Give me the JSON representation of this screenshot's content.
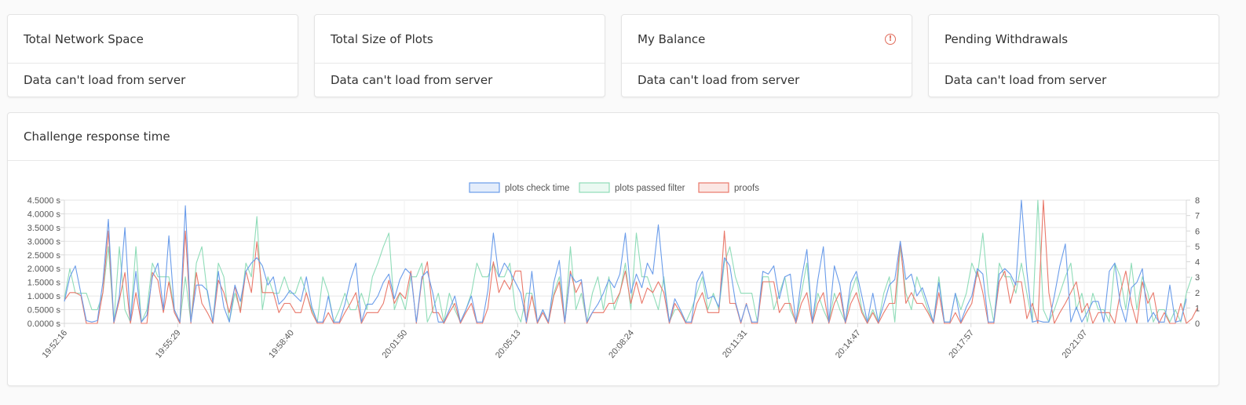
{
  "stat_cards": [
    {
      "title": "Total Network Space",
      "body": "Data can't load from server"
    },
    {
      "title": "Total Size of Plots",
      "body": "Data can't load from server"
    },
    {
      "title": "My Balance",
      "body": "Data can't load from server",
      "icon": "alert-circle-icon"
    },
    {
      "title": "Pending Withdrawals",
      "body": "Data can't load from server"
    }
  ],
  "chart_card": {
    "title": "Challenge response time"
  },
  "colors": {
    "check": "#6a9cea",
    "filter": "#8fdcb8",
    "proofs": "#e9786a"
  },
  "chart_data": {
    "type": "line",
    "legend": [
      "plots check time",
      "plots passed filter",
      "proofs"
    ],
    "legend_placement": "top",
    "x_tick_labels": [
      "19:52:16",
      "19:55:29",
      "19:58:40",
      "20:01:50",
      "20:05:13",
      "20:08:24",
      "20:11:31",
      "20:14:47",
      "20:17:57",
      "20:21:07"
    ],
    "y_left": {
      "min": 0,
      "max": 4.5,
      "step": 0.5,
      "tick_labels": [
        "0.0000 s",
        "0.5000 s",
        "1.0000 s",
        "1.5000 s",
        "2.0000 s",
        "2.5000 s",
        "3.0000 s",
        "3.5000 s",
        "4.0000 s",
        "4.5000 s"
      ]
    },
    "y_right": {
      "min": 0,
      "max": 8,
      "step": 1,
      "tick_labels": [
        "0",
        "1",
        "2",
        "3",
        "4",
        "5",
        "6",
        "7",
        "8"
      ]
    },
    "grid": true,
    "series": [
      {
        "name": "plots check time",
        "axis": "left",
        "values": [
          0.8,
          1.7,
          2.1,
          1.1,
          0.1,
          0.05,
          0.1,
          1.5,
          3.8,
          0.05,
          1.0,
          3.5,
          0.1,
          1.9,
          0.05,
          0.3,
          1.7,
          2.2,
          0.5,
          3.2,
          0.5,
          0.05,
          4.3,
          0.05,
          1.4,
          1.4,
          1.2,
          0.05,
          1.9,
          0.6,
          0.05,
          1.4,
          0.8,
          1.9,
          2.2,
          2.4,
          2.1,
          1.4,
          1.7,
          0.7,
          0.9,
          1.2,
          1.0,
          0.8,
          1.7,
          0.6,
          0.05,
          0.05,
          1.0,
          0.05,
          0.05,
          0.7,
          1.6,
          2.2,
          0.05,
          0.7,
          0.7,
          1.0,
          1.5,
          1.8,
          0.9,
          1.6,
          2.0,
          1.8,
          0.05,
          1.7,
          1.9,
          1.1,
          0.05,
          0.05,
          0.5,
          1.0,
          0.05,
          0.5,
          1.0,
          0.05,
          0.05,
          1.2,
          3.3,
          1.7,
          2.2,
          1.9,
          1.5,
          1.1,
          0.05,
          1.9,
          0.05,
          0.5,
          0.05,
          1.5,
          2.3,
          0.05,
          1.8,
          1.5,
          1.6,
          0.05,
          0.4,
          0.7,
          1.1,
          1.6,
          1.3,
          1.8,
          3.3,
          1.1,
          1.8,
          1.3,
          2.2,
          1.8,
          3.6,
          1.5,
          0.05,
          0.9,
          0.5,
          0.05,
          0.05,
          1.5,
          1.9,
          0.9,
          1.0,
          0.6,
          2.4,
          2.1,
          0.8,
          0.05,
          0.7,
          0.05,
          0.05,
          1.9,
          1.8,
          2.1,
          0.9,
          1.7,
          1.8,
          0.05,
          1.6,
          2.7,
          0.05,
          1.6,
          2.8,
          0.05,
          2.1,
          1.4,
          0.05,
          1.5,
          1.9,
          1.0,
          0.05,
          1.1,
          0.05,
          0.7,
          1.4,
          1.6,
          3.0,
          1.6,
          1.8,
          1.0,
          1.3,
          0.7,
          0.05,
          1.5,
          0.05,
          0.05,
          1.1,
          0.05,
          0.6,
          1.0,
          2.0,
          1.8,
          0.05,
          0.05,
          1.8,
          2.0,
          1.8,
          1.4,
          4.5,
          1.9,
          0.05,
          0.1,
          0.05,
          0.05,
          1.0,
          2.1,
          2.9,
          0.05,
          0.6,
          0.05,
          0.4,
          0.8,
          0.8,
          0.05,
          1.9,
          2.2,
          0.7,
          0.05,
          1.3,
          1.5,
          2.0,
          0.05,
          0.4,
          0.05,
          0.05,
          1.4,
          0.05,
          0.1,
          0.9
        ]
      },
      {
        "name": "plots passed filter",
        "axis": "left",
        "values": [
          0.9,
          2.0,
          1.1,
          1.1,
          1.1,
          0.5,
          0.5,
          1.1,
          2.8,
          0.05,
          2.8,
          0.5,
          0.05,
          2.8,
          0.05,
          0.5,
          2.2,
          1.7,
          1.7,
          1.7,
          0.5,
          0.05,
          1.7,
          0.05,
          2.2,
          2.8,
          1.1,
          0.05,
          2.2,
          1.7,
          0.05,
          1.1,
          0.5,
          2.2,
          1.7,
          3.9,
          0.5,
          1.7,
          1.1,
          1.1,
          1.7,
          1.1,
          1.1,
          1.7,
          1.1,
          0.5,
          0.05,
          1.7,
          1.1,
          0.05,
          0.5,
          1.1,
          0.5,
          0.5,
          1.1,
          0.5,
          1.7,
          2.2,
          2.8,
          3.3,
          0.5,
          1.1,
          0.5,
          1.7,
          1.7,
          2.2,
          0.05,
          0.5,
          1.1,
          0.05,
          1.1,
          0.5,
          0.05,
          0.5,
          1.1,
          2.2,
          1.7,
          1.7,
          2.2,
          1.7,
          1.7,
          2.2,
          0.5,
          0.05,
          1.1,
          1.1,
          0.05,
          0.5,
          0.05,
          1.1,
          1.7,
          0.05,
          2.8,
          0.5,
          1.1,
          0.05,
          1.1,
          1.7,
          0.5,
          1.7,
          0.5,
          1.1,
          2.2,
          0.5,
          3.3,
          1.7,
          1.7,
          1.1,
          0.5,
          1.7,
          0.05,
          0.5,
          0.5,
          0.05,
          0.5,
          1.1,
          1.7,
          0.5,
          1.1,
          0.5,
          2.2,
          2.8,
          1.7,
          1.1,
          1.1,
          1.1,
          0.05,
          1.7,
          1.7,
          0.5,
          1.1,
          1.7,
          0.5,
          0.05,
          1.1,
          2.2,
          0.05,
          1.1,
          0.5,
          0.05,
          1.1,
          0.5,
          0.05,
          1.1,
          1.7,
          0.5,
          0.05,
          0.5,
          0.05,
          1.1,
          1.7,
          0.05,
          2.8,
          1.1,
          0.5,
          1.7,
          1.1,
          0.5,
          0.05,
          1.7,
          0.05,
          0.05,
          1.1,
          0.5,
          1.1,
          2.2,
          1.7,
          3.3,
          1.1,
          0.05,
          2.2,
          1.7,
          1.7,
          1.1,
          2.2,
          1.1,
          0.05,
          4.5,
          0.5,
          0.05,
          0.5,
          1.1,
          1.7,
          2.2,
          0.5,
          1.1,
          0.05,
          1.1,
          0.5,
          0.5,
          0.05,
          2.2,
          1.7,
          0.5,
          2.2,
          0.5,
          1.7,
          1.1,
          0.05,
          0.5,
          0.5,
          0.05,
          0.5,
          0.05,
          1.1,
          1.7
        ]
      },
      {
        "name": "proofs",
        "axis": "right",
        "values": [
          1.5,
          2,
          2,
          1.8,
          0,
          0,
          0,
          2,
          6,
          0,
          1.5,
          3.3,
          0,
          2,
          0,
          0,
          3.3,
          2.8,
          0.7,
          2.7,
          0.7,
          0,
          6,
          0,
          3.3,
          1.3,
          0.7,
          0,
          2.8,
          2,
          0.7,
          2.4,
          0.7,
          3.4,
          2,
          5.3,
          2,
          2,
          2,
          0.7,
          1.3,
          1.3,
          0.7,
          0.7,
          2,
          0.7,
          0,
          0,
          0.7,
          0,
          0,
          0.7,
          1.3,
          2,
          0,
          0.7,
          0.7,
          0.7,
          1.3,
          2.8,
          1.3,
          2,
          1.6,
          3.4,
          0,
          2.8,
          4,
          0.7,
          0.7,
          0,
          0.7,
          1.3,
          0,
          0.7,
          1.3,
          0,
          0,
          1,
          4,
          2,
          2.8,
          2.2,
          3.4,
          3.4,
          0,
          1.8,
          0,
          0.7,
          0,
          1.8,
          2.7,
          0,
          3.4,
          2,
          2.7,
          0,
          0.7,
          0.7,
          0.7,
          1.3,
          1.3,
          2,
          3.4,
          1.3,
          2.7,
          1.3,
          2.3,
          2,
          2.7,
          2,
          0,
          1.3,
          0.7,
          0,
          0,
          1.3,
          2,
          0.7,
          0.7,
          0.7,
          6,
          1.3,
          1.3,
          0,
          1.3,
          0,
          0,
          2.7,
          2.7,
          2.7,
          0.7,
          1.3,
          1.3,
          0,
          1.3,
          2,
          0,
          1.3,
          2,
          0,
          1.3,
          2,
          0,
          1.3,
          2,
          0.7,
          0,
          0.7,
          0,
          0.7,
          1.3,
          1.3,
          5.3,
          1.3,
          2,
          1.3,
          1.3,
          0.7,
          0,
          2,
          0,
          0,
          0.7,
          0,
          0.7,
          1.3,
          3.4,
          2,
          0,
          0,
          2.7,
          3.4,
          1.3,
          2.7,
          2.7,
          0.3,
          1.3,
          0,
          8,
          2,
          0,
          0.7,
          1.3,
          2,
          2.7,
          0.7,
          1.3,
          0,
          0.7,
          0.7,
          0.7,
          0,
          2,
          3.4,
          1.3,
          0,
          2.7,
          1.3,
          2,
          0,
          0.7,
          0,
          0,
          1.3,
          0,
          0.3,
          1
        ]
      }
    ]
  }
}
